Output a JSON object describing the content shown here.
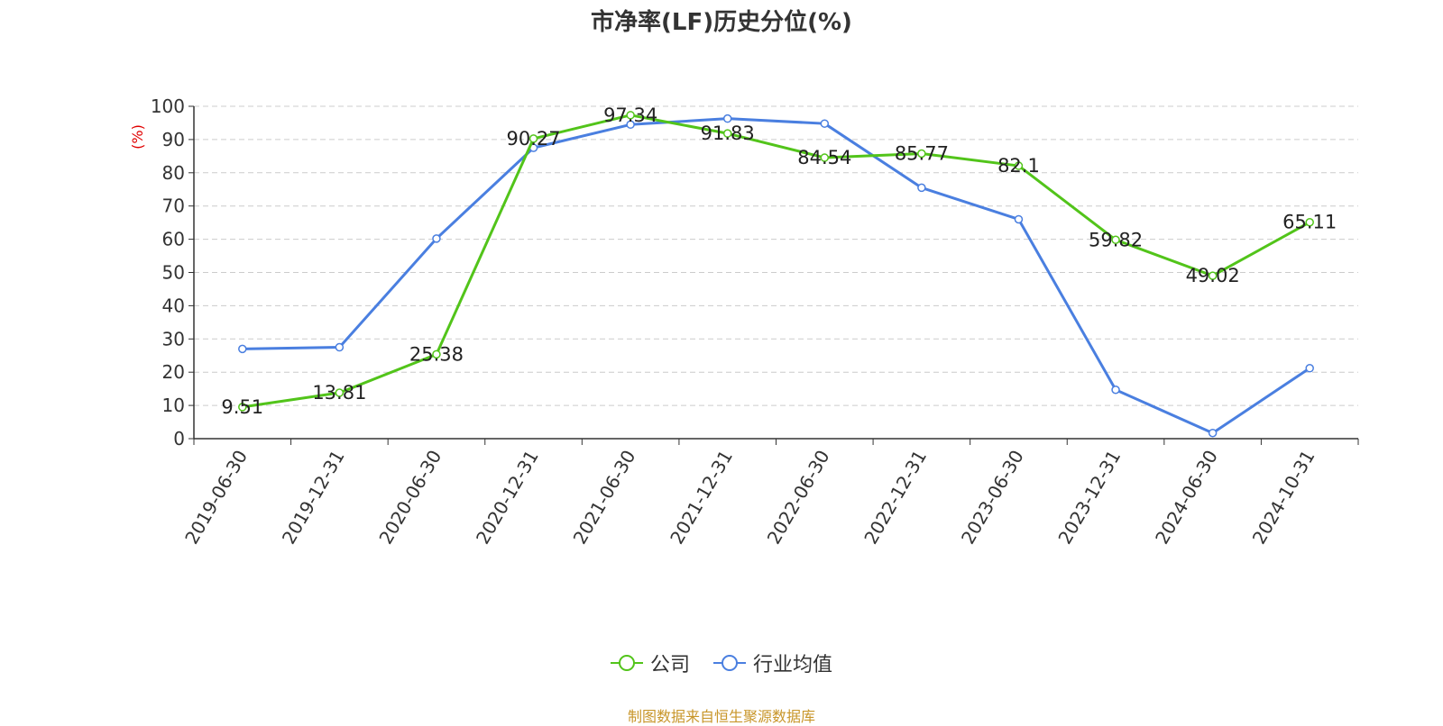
{
  "chart_data": {
    "type": "line",
    "title": "市净率(LF)历史分位(%)",
    "ylabel": "(%)",
    "ylim": [
      0,
      100
    ],
    "yticks": [
      "0",
      "10",
      "20",
      "30",
      "40",
      "50",
      "60",
      "70",
      "80",
      "90",
      "100"
    ],
    "categories": [
      "2019-06-30",
      "2019-12-31",
      "2020-06-30",
      "2020-12-31",
      "2021-06-30",
      "2021-12-31",
      "2022-06-30",
      "2022-12-31",
      "2023-06-30",
      "2023-12-31",
      "2024-06-30",
      "2024-10-31"
    ],
    "series": [
      {
        "name": "公司",
        "color": "#52c41a",
        "values": [
          9.51,
          13.81,
          25.38,
          90.27,
          97.34,
          91.83,
          84.54,
          85.77,
          82.1,
          59.82,
          49.02,
          65.11
        ],
        "labels": [
          "9.51",
          "13.81",
          "25.38",
          "90.27",
          "97.34",
          "91.83",
          "84.54",
          "85.77",
          "82.1",
          "59.82",
          "49.02",
          "65.11"
        ]
      },
      {
        "name": "行业均值",
        "color": "#4a7fe0",
        "values": [
          27.0,
          27.5,
          60.2,
          87.5,
          94.5,
          96.3,
          94.8,
          75.5,
          66.0,
          14.7,
          1.7,
          21.2
        ]
      }
    ],
    "grid": true,
    "legend_position": "bottom"
  },
  "source": "制图数据来自恒生聚源数据库"
}
